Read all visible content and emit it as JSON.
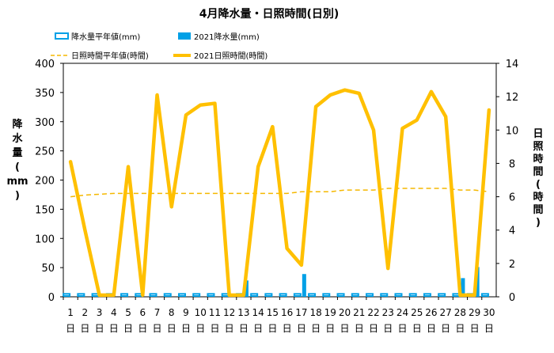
{
  "chart_data": {
    "type": "bar+line",
    "title": "4月降水量・日照時間(日別)",
    "days": [
      "1",
      "2",
      "3",
      "4",
      "5",
      "6",
      "7",
      "8",
      "9",
      "10",
      "11",
      "12",
      "13",
      "14",
      "15",
      "16",
      "17",
      "18",
      "19",
      "20",
      "21",
      "22",
      "23",
      "24",
      "25",
      "26",
      "27",
      "28",
      "29",
      "30"
    ],
    "day_suffix": "日",
    "ylabel_left_chars": [
      "降",
      "水",
      "量",
      "(",
      "mm",
      ")"
    ],
    "ylabel_right_chars": [
      "日",
      "照",
      "時",
      "間",
      "(",
      "時",
      "間",
      ")"
    ],
    "y_left": {
      "min": 0,
      "max": 400,
      "ticks": [
        "0",
        "50",
        "100",
        "150",
        "200",
        "250",
        "300",
        "350",
        "400"
      ]
    },
    "y_right": {
      "min": 0,
      "max": 14,
      "ticks": [
        "0",
        "2",
        "4",
        "6",
        "8",
        "10",
        "12",
        "14"
      ]
    },
    "series": [
      {
        "name": "降水量平年値(mm)",
        "axis": "left",
        "kind": "bar-outline",
        "color": "#00A0E6",
        "values": [
          5,
          5,
          5,
          5,
          5,
          5,
          5,
          5,
          5,
          5,
          5,
          5,
          5,
          5,
          5,
          5,
          5,
          5,
          5,
          5,
          5,
          5,
          5,
          5,
          5,
          5,
          5,
          5,
          5,
          5
        ]
      },
      {
        "name": "2021降水量(mm)",
        "axis": "left",
        "kind": "bar",
        "color": "#00A0E6",
        "values": [
          0,
          0,
          0,
          0,
          0,
          0,
          0,
          0,
          0,
          0,
          0,
          0,
          28,
          0,
          0,
          0,
          39,
          0,
          0,
          0,
          0,
          0,
          0,
          0,
          0,
          0,
          0,
          32,
          51,
          0
        ]
      },
      {
        "name": "日照時間平年値(時間)",
        "axis": "right",
        "kind": "line-dashed",
        "color": "#F5B800",
        "values": [
          6.0,
          6.1,
          6.15,
          6.2,
          6.2,
          6.2,
          6.2,
          6.2,
          6.2,
          6.2,
          6.2,
          6.2,
          6.2,
          6.2,
          6.2,
          6.2,
          6.3,
          6.3,
          6.3,
          6.4,
          6.4,
          6.4,
          6.5,
          6.5,
          6.5,
          6.5,
          6.5,
          6.4,
          6.4,
          6.3
        ]
      },
      {
        "name": "2021日照時間(時間)",
        "axis": "right",
        "kind": "line",
        "color": "#FFC000",
        "values": [
          8.1,
          4.0,
          0.1,
          0.1,
          7.8,
          0.1,
          12.1,
          5.4,
          10.9,
          11.5,
          11.6,
          0.1,
          0.1,
          7.8,
          10.2,
          2.9,
          1.9,
          11.4,
          12.1,
          12.4,
          12.2,
          10.0,
          1.7,
          10.1,
          10.6,
          12.3,
          10.8,
          0.1,
          0.1,
          11.2
        ]
      }
    ],
    "legend_position": "top",
    "grid": false
  }
}
